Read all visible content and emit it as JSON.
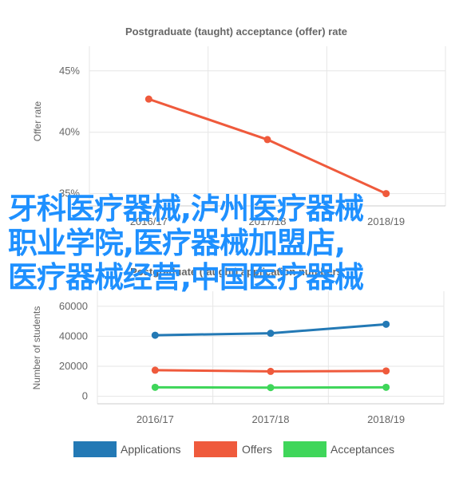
{
  "chart_data": [
    {
      "type": "line",
      "title": "Postgraduate (taught) acceptance (offer) rate",
      "ylabel": "Offer rate",
      "categories": [
        "2016/17",
        "2017/18",
        "2018/19"
      ],
      "yticks": [
        "35%",
        "40%",
        "45%"
      ],
      "ylim": [
        34,
        47
      ],
      "grid": true,
      "series": [
        {
          "values": [
            42.7,
            39.4,
            35.0
          ],
          "color": "#ef5a3c"
        }
      ]
    },
    {
      "type": "line",
      "title": "Postgraduate (taught) application numbers",
      "ylabel": "Number of students",
      "categories": [
        "2016/17",
        "2017/18",
        "2018/19"
      ],
      "yticks": [
        "0",
        "20000",
        "40000",
        "60000"
      ],
      "ylim": [
        -5000,
        70000
      ],
      "grid": true,
      "legend_position": "bottom",
      "series": [
        {
          "name": "Applications",
          "values": [
            40700,
            42000,
            48000
          ],
          "color": "#2379b5"
        },
        {
          "name": "Offers",
          "values": [
            17400,
            16600,
            16900
          ],
          "color": "#ef5a3c"
        },
        {
          "name": "Acceptances",
          "values": [
            6000,
            5800,
            6000
          ],
          "color": "#3fd65a"
        }
      ]
    }
  ],
  "overlay_lines": [
    "牙科医疗器械,泸州医疗器械",
    "职业学院,医疗器械加盟店,",
    "医疗器械经营,中国医疗器械"
  ]
}
